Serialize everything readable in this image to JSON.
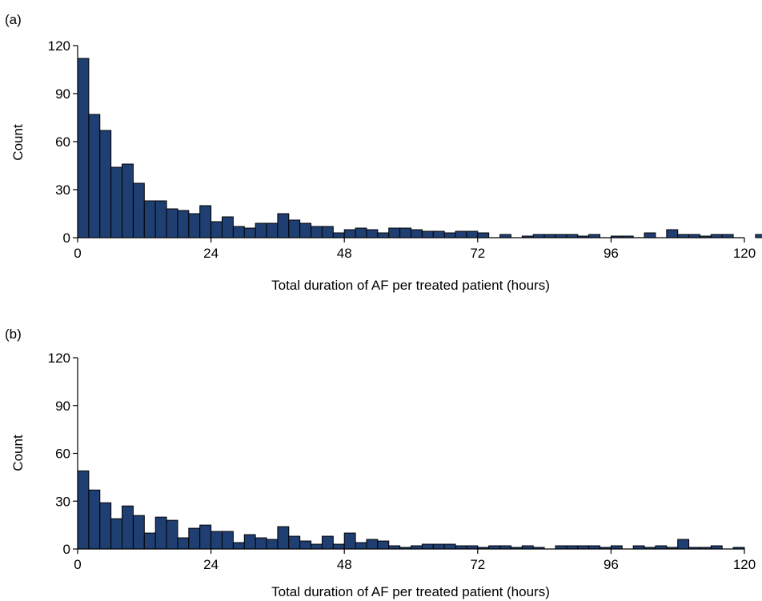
{
  "chart_data": [
    {
      "type": "bar",
      "panel_label": "(a)",
      "xlabel": "Total duration of AF per treated patient (hours)",
      "ylabel": "Count",
      "xlim": [
        0,
        120
      ],
      "ylim": [
        0,
        120
      ],
      "xticks": [
        "0",
        "24",
        "48",
        "72",
        "96",
        "120"
      ],
      "yticks": [
        "0",
        "30",
        "60",
        "90",
        "120"
      ],
      "bin_width": 2,
      "bin_start": 0,
      "values": [
        112,
        77,
        67,
        44,
        46,
        34,
        23,
        23,
        18,
        17,
        15,
        20,
        10,
        13,
        7,
        6,
        9,
        9,
        15,
        11,
        9,
        7,
        7,
        3,
        5,
        6,
        5,
        3,
        6,
        6,
        5,
        4,
        4,
        3,
        4,
        4,
        3,
        0,
        2,
        0,
        1,
        2,
        2,
        2,
        2,
        1,
        2,
        0,
        1,
        1,
        0,
        3,
        0,
        5,
        2,
        2,
        1,
        2,
        2,
        0,
        0,
        2
      ],
      "bar_color": "#1f3f73",
      "grid": false
    },
    {
      "type": "bar",
      "panel_label": "(b)",
      "xlabel": "Total duration of AF per treated patient (hours)",
      "ylabel": "Count",
      "xlim": [
        0,
        120
      ],
      "ylim": [
        0,
        120
      ],
      "xticks": [
        "0",
        "24",
        "48",
        "72",
        "96",
        "120"
      ],
      "yticks": [
        "0",
        "30",
        "60",
        "90",
        "120"
      ],
      "bin_width": 2,
      "bin_start": 0,
      "values": [
        49,
        37,
        29,
        19,
        27,
        21,
        10,
        20,
        18,
        7,
        13,
        15,
        11,
        11,
        4,
        9,
        7,
        6,
        14,
        8,
        5,
        3,
        8,
        3,
        10,
        4,
        6,
        5,
        2,
        1,
        2,
        3,
        3,
        3,
        2,
        2,
        1,
        2,
        2,
        1,
        2,
        1,
        0,
        2,
        2,
        2,
        2,
        1,
        2,
        0,
        2,
        1,
        2,
        1,
        6,
        1,
        1,
        2,
        0,
        1
      ],
      "bar_color": "#1f3f73",
      "grid": false
    }
  ]
}
